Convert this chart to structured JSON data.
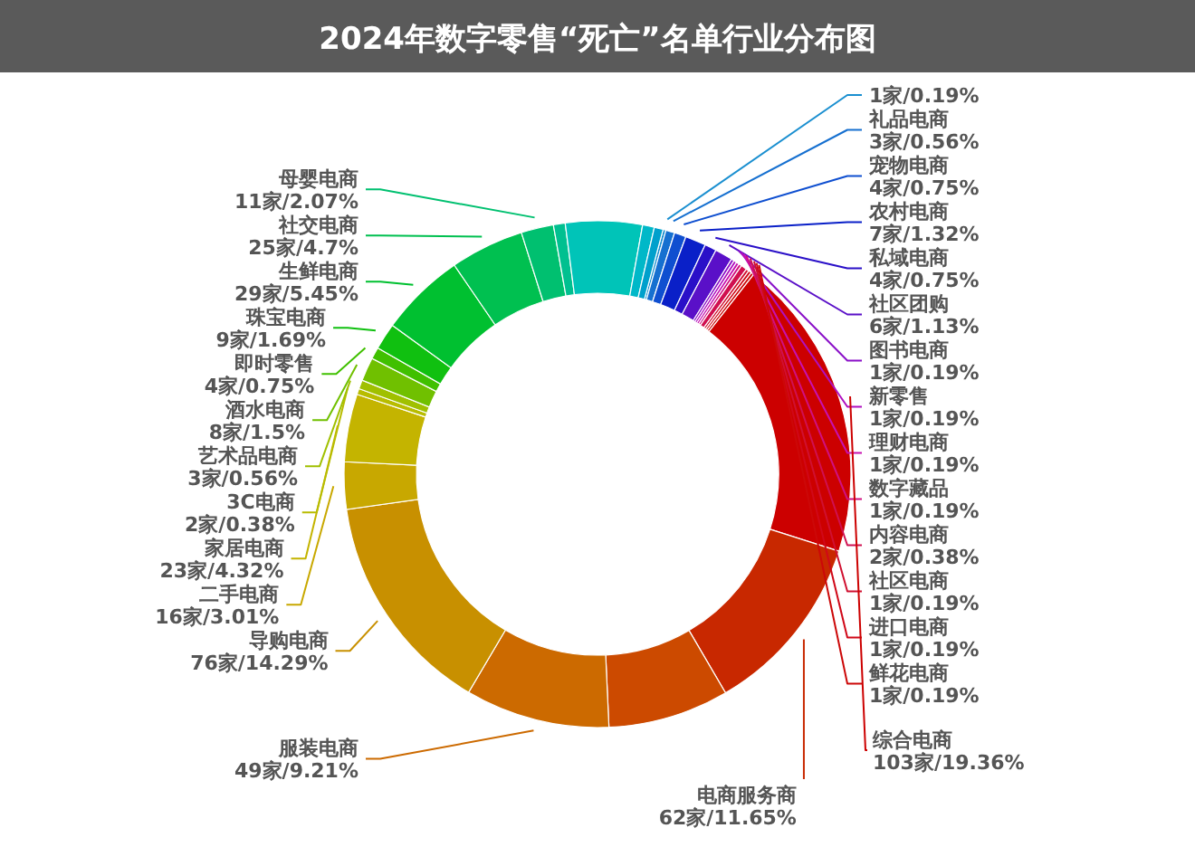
{
  "chart_data": {
    "type": "donut",
    "title": "2024年数字零售“死亡”名单行业分布图",
    "categories": [
      null,
      "礼品电商",
      "宠物电商",
      "农村电商",
      "私域电商",
      "社区团购",
      "图书电商",
      "新零售",
      "理财电商",
      "数字藏品",
      "内容电商",
      "社区电商",
      "进口电商",
      "鲜花电商",
      "综合电商",
      "电商服务商",
      null,
      "服装电商",
      "导购电商",
      "二手电商",
      "家居电商",
      "3C电商",
      "艺术品电商",
      "酒水电商",
      "即时零售",
      "珠宝电商",
      "生鲜电商",
      "社交电商",
      "母婴电商",
      null,
      null,
      null,
      null
    ],
    "values": [
      1,
      3,
      4,
      7,
      4,
      6,
      1,
      1,
      1,
      1,
      2,
      1,
      1,
      1,
      103,
      62,
      41,
      49,
      76,
      16,
      23,
      2,
      3,
      8,
      4,
      9,
      29,
      25,
      11,
      4,
      26,
      4,
      3
    ],
    "value_labels": [
      "1家/0.19%",
      "3家/0.56%",
      "4家/0.75%",
      "7家/1.32%",
      "4家/0.75%",
      "6家/1.13%",
      "1家/0.19%",
      "1家/0.19%",
      "1家/0.19%",
      "1家/0.19%",
      "2家/0.38%",
      "1家/0.19%",
      "1家/0.19%",
      "1家/0.19%",
      "103家/19.36%",
      "62家/11.65%",
      null,
      "49家/9.21%",
      "76家/14.29%",
      "16家/3.01%",
      "23家/4.32%",
      "2家/0.38%",
      "3家/0.56%",
      "8家/1.5%",
      "4家/0.75%",
      "9家/1.69%",
      "29家/5.45%",
      "25家/4.7%",
      "11家/2.07%",
      null,
      null,
      null,
      null
    ],
    "colors": [
      "#1a8fd0",
      "#1670d0",
      "#0f4fd0",
      "#0a20c8",
      "#2a10c8",
      "#5a10c8",
      "#8a10c8",
      "#b010c0",
      "#c810b0",
      "#d01080",
      "#d01050",
      "#d01030",
      "#d00818",
      "#cc0808",
      "#cc0000",
      "#c82800",
      "#cc4a00",
      "#cc6a00",
      "#c89000",
      "#c8a800",
      "#c4b400",
      "#b8bc00",
      "#a0c000",
      "#70c000",
      "#40c000",
      "#10c010",
      "#00c030",
      "#00c050",
      "#00c070",
      "#00c090",
      "#00c4b8",
      "#00b8c8",
      "#00a0cc"
    ]
  }
}
